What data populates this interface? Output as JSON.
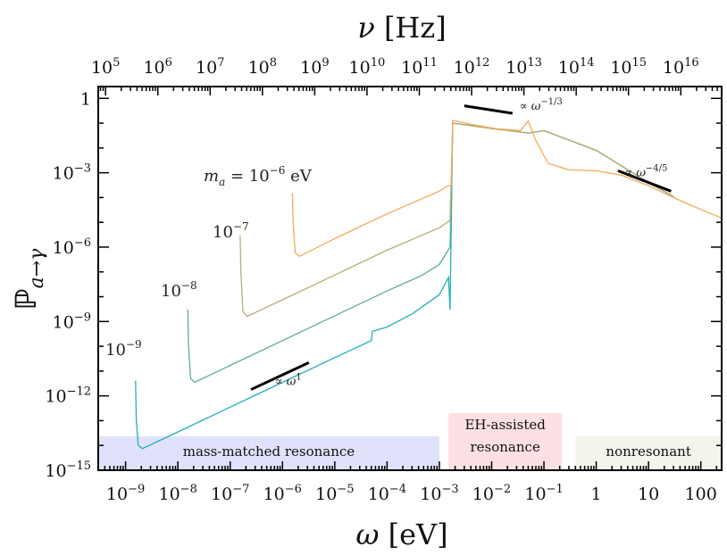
{
  "chart_data": {
    "type": "line",
    "title": "",
    "xlabel": "ω [eV]",
    "ylabel": "ℙa→γ",
    "x2label": "ν [Hz]",
    "xscale": "log",
    "yscale": "log",
    "xlim": [
      3e-10,
      250
    ],
    "ylim": [
      1e-15,
      3
    ],
    "grid": false,
    "x_ticks": [
      {
        "value": 1e-09,
        "label": "10^-9"
      },
      {
        "value": 1e-08,
        "label": "10^-8"
      },
      {
        "value": 1e-07,
        "label": "10^-7"
      },
      {
        "value": 1e-06,
        "label": "10^-6"
      },
      {
        "value": 1e-05,
        "label": "10^-5"
      },
      {
        "value": 0.0001,
        "label": "10^-4"
      },
      {
        "value": 0.001,
        "label": "10^-3"
      },
      {
        "value": 0.01,
        "label": "10^-2"
      },
      {
        "value": 0.1,
        "label": "10^-1"
      },
      {
        "value": 1,
        "label": "1"
      },
      {
        "value": 10,
        "label": "10"
      },
      {
        "value": 100,
        "label": "100"
      }
    ],
    "y_ticks": [
      {
        "value": 1,
        "label": "1"
      },
      {
        "value": 0.001,
        "label": "10^-3"
      },
      {
        "value": 1e-06,
        "label": "10^-6"
      },
      {
        "value": 1e-09,
        "label": "10^-9"
      },
      {
        "value": 1e-12,
        "label": "10^-12"
      },
      {
        "value": 1e-15,
        "label": "10^-15"
      }
    ],
    "x2_ticks": [
      {
        "value": 100000.0,
        "label": "10^5"
      },
      {
        "value": 1000000.0,
        "label": "10^6"
      },
      {
        "value": 10000000.0,
        "label": "10^7"
      },
      {
        "value": 100000000.0,
        "label": "10^8"
      },
      {
        "value": 1000000000.0,
        "label": "10^9"
      },
      {
        "value": 10000000000.0,
        "label": "10^10"
      },
      {
        "value": 100000000000.0,
        "label": "10^11"
      },
      {
        "value": 1000000000000.0,
        "label": "10^12"
      },
      {
        "value": 10000000000000.0,
        "label": "10^13"
      },
      {
        "value": 100000000000000.0,
        "label": "10^14"
      },
      {
        "value": 1000000000000000.0,
        "label": "10^15"
      },
      {
        "value": 1e+16,
        "label": "10^16"
      }
    ],
    "hz_per_ev": 241800000000000.0,
    "series": [
      {
        "name": "m_a = 10^-6 eV",
        "label": "m_a = 10^{-6} eV",
        "color": "#f5a85a",
        "points": [
          [
            1.55e-06,
            0.00015
          ],
          [
            1.6e-06,
            1e-05
          ],
          [
            1.75e-06,
            6e-07
          ],
          [
            2.1e-06,
            4.2e-07
          ],
          [
            1e-05,
            2.2e-06
          ],
          [
            0.0001,
            2.2e-05
          ],
          [
            0.001,
            0.00018
          ],
          [
            0.0015,
            0.0003
          ],
          [
            0.0017,
            0.0003
          ],
          [
            0.0018,
            0.13
          ],
          [
            0.004,
            0.09
          ],
          [
            0.012,
            0.06
          ],
          [
            0.035,
            0.05
          ],
          [
            0.05,
            0.12
          ],
          [
            0.07,
            0.02
          ],
          [
            0.12,
            0.0024
          ],
          [
            0.3,
            0.0013
          ],
          [
            1,
            0.0012
          ],
          [
            3,
            0.0008
          ],
          [
            10,
            0.0003
          ],
          [
            30,
            0.0001
          ],
          [
            100,
            3.3e-05
          ],
          [
            250,
            1.5e-05
          ]
        ]
      },
      {
        "name": "m_a = 10^-7 eV",
        "label": "10^{-7}",
        "color": "#b7ad74",
        "points": [
          [
            1.55e-07,
            3e-06
          ],
          [
            1.6e-07,
            1e-07
          ],
          [
            1.75e-07,
            2.5e-09
          ],
          [
            2.1e-07,
            1.6e-09
          ],
          [
            1e-06,
            7.5e-09
          ],
          [
            1e-05,
            7.5e-08
          ],
          [
            0.0001,
            7.5e-07
          ],
          [
            0.001,
            6e-06
          ],
          [
            0.0016,
            1.2e-05
          ],
          [
            0.0018,
            0.1
          ],
          [
            0.01,
            0.06
          ],
          [
            0.05,
            0.04
          ],
          [
            0.1,
            0.05
          ],
          [
            1,
            0.008
          ],
          [
            10,
            0.0004
          ],
          [
            30,
            0.00011
          ]
        ]
      },
      {
        "name": "m_a = 10^-8 eV",
        "label": "10^{-8}",
        "color": "#5aaf8f",
        "points": [
          [
            1.55e-08,
            3e-09
          ],
          [
            1.6e-08,
            1e-10
          ],
          [
            1.75e-08,
            5e-12
          ],
          [
            2.1e-08,
            3.5e-12
          ],
          [
            1e-07,
            1.7e-11
          ],
          [
            1e-06,
            1.7e-10
          ],
          [
            1e-05,
            1.7e-09
          ],
          [
            0.0001,
            1.7e-08
          ],
          [
            0.00045,
            7e-08
          ],
          [
            0.001,
            2e-07
          ],
          [
            0.0016,
            1e-06
          ],
          [
            0.0018,
            0.1
          ],
          [
            0.05,
            0.04
          ],
          [
            0.1,
            0.05
          ],
          [
            1,
            0.008
          ],
          [
            10,
            0.0004
          ],
          [
            30,
            0.00011
          ]
        ]
      },
      {
        "name": "m_a = 10^-9 eV",
        "label": "10^{-9}",
        "color": "#1fb0b8",
        "points": [
          [
            1.55e-09,
            4e-12
          ],
          [
            1.6e-09,
            1e-13
          ],
          [
            1.75e-09,
            1e-14
          ],
          [
            2.1e-09,
            7.5e-15
          ],
          [
            1e-08,
            3.5e-14
          ],
          [
            1e-07,
            3.5e-13
          ],
          [
            1e-06,
            3.5e-12
          ],
          [
            1e-05,
            3.5e-11
          ],
          [
            5e-05,
            1.7e-10
          ],
          [
            5.2e-05,
            4e-10
          ],
          [
            0.0001,
            6e-10
          ],
          [
            0.0003,
            2e-09
          ],
          [
            0.001,
            1.2e-08
          ],
          [
            0.0015,
            6e-08
          ],
          [
            0.0016,
            3e-09
          ],
          [
            0.0018,
            0.1
          ],
          [
            0.05,
            0.04
          ],
          [
            0.1,
            0.05
          ],
          [
            1,
            0.008
          ],
          [
            10,
            0.0004
          ],
          [
            30,
            0.00011
          ]
        ]
      }
    ],
    "regions": [
      {
        "label": "mass-matched resonance",
        "x_range": [
          3e-10,
          0.001
        ],
        "color": "#e0e2fb"
      },
      {
        "label": "EH-assisted resonance",
        "lines": [
          "EH-assisted",
          "resonance"
        ],
        "x_range": [
          0.0015,
          0.22
        ],
        "color": "#fde0e3"
      },
      {
        "label": "nonresonant",
        "x_range": [
          0.4,
          250
        ],
        "color": "#f1f5ec"
      }
    ],
    "annotations": [
      {
        "text": "∝ ω^1",
        "base": "∝ ω",
        "exp": "1",
        "slope_segment": [
          [
            2.5e-07,
            1.8e-12
          ],
          [
            3.2e-06,
            2.2e-11
          ]
        ]
      },
      {
        "text": "∝ ω^-1/3",
        "base": "∝ ω",
        "exp": "−1/3",
        "slope_segment": [
          [
            0.003,
            0.5
          ],
          [
            0.025,
            0.25
          ]
        ]
      },
      {
        "text": "∝ ω^-4/5",
        "base": "∝ ω",
        "exp": "−4/5",
        "slope_segment": [
          [
            2.6,
            0.0012
          ],
          [
            27,
            0.00018
          ]
        ]
      }
    ],
    "curve_labels": [
      {
        "series": "m_a = 10^-6 eV",
        "base": "m",
        "sub": "a",
        "mid": " = 10",
        "exp": "−6",
        "tail": " eV"
      },
      {
        "series": "m_a = 10^-7 eV",
        "base": "10",
        "exp": "−7"
      },
      {
        "series": "m_a = 10^-8 eV",
        "base": "10",
        "exp": "−8"
      },
      {
        "series": "m_a = 10^-9 eV",
        "base": "10",
        "exp": "−9"
      }
    ]
  }
}
